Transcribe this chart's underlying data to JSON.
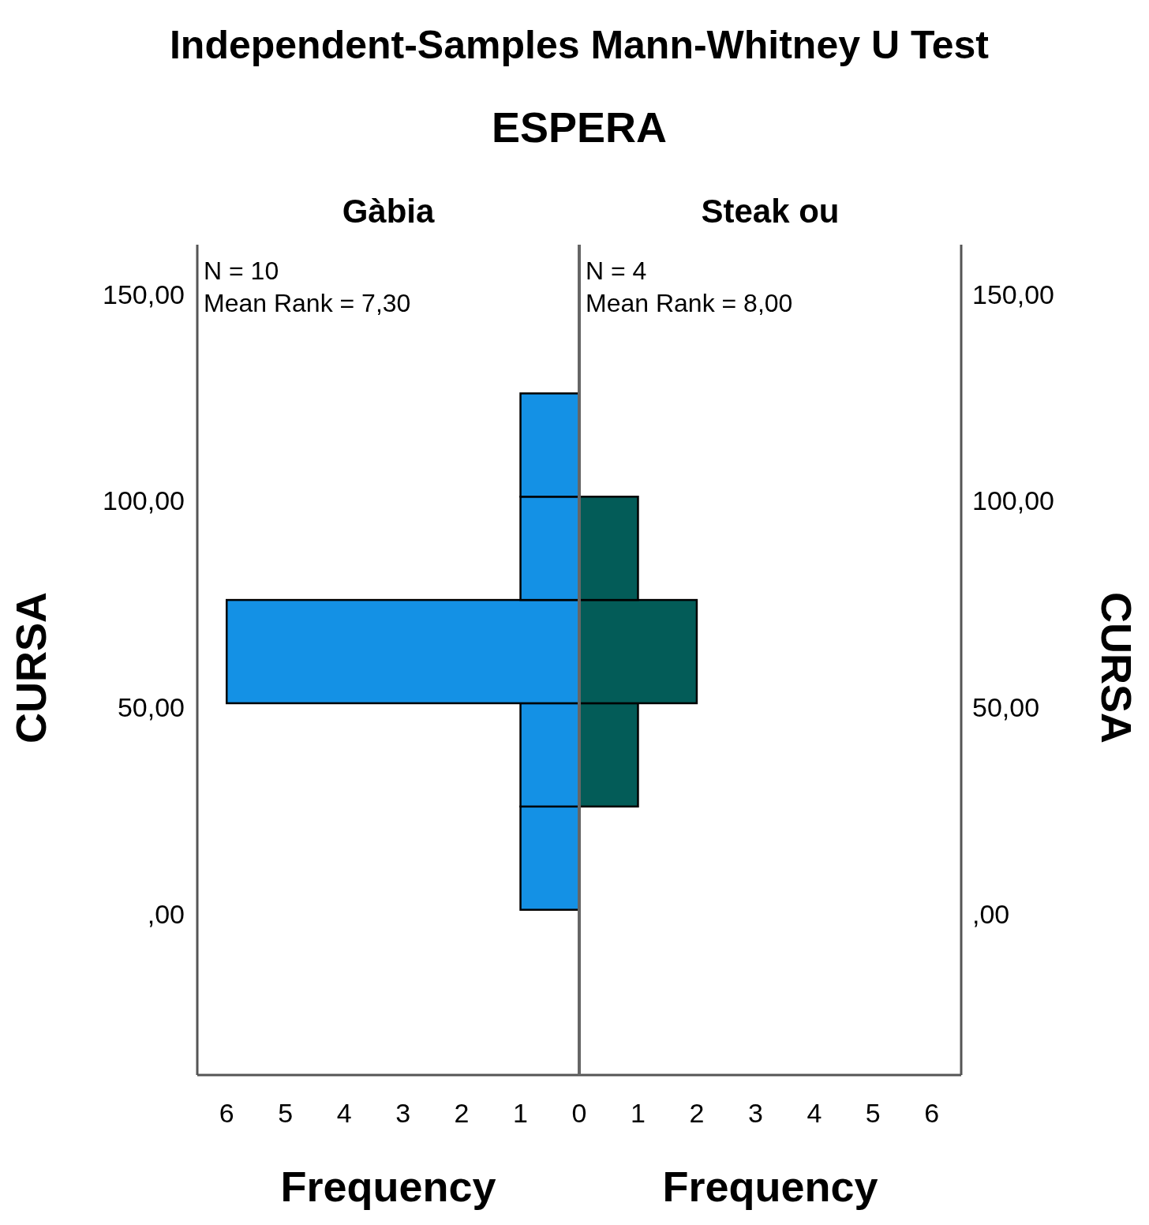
{
  "chart_data": [
    {
      "type": "histogram",
      "orientation": "horizontal",
      "title": "Gàbia",
      "ylabel": "CURSA",
      "xlabel": "Frequency",
      "annotations": [
        "Independent-Samples Mann-Whitney U Test",
        "ESPERA",
        "N = 10",
        "Mean Rank = 7,30"
      ],
      "bins": [
        1,
        26,
        51,
        76,
        101,
        126
      ],
      "values": [
        1,
        1,
        6,
        1,
        1
      ],
      "color": "#1491e5",
      "xlim": [
        6.5,
        0
      ],
      "xticks": [
        6,
        5,
        4,
        3,
        2,
        1,
        0
      ],
      "ylim": [
        -39,
        162
      ],
      "yticks": [
        {
          "value": 0,
          "label": ",00"
        },
        {
          "value": 50,
          "label": "50,00"
        },
        {
          "value": 100,
          "label": "100,00"
        },
        {
          "value": 150,
          "label": "150,00"
        }
      ],
      "grid": false
    },
    {
      "type": "histogram",
      "orientation": "horizontal",
      "title": "Steak ou",
      "ylabel": "CURSA",
      "xlabel": "Frequency",
      "annotations": [
        "N = 4",
        "Mean Rank = 8,00"
      ],
      "bins": [
        26,
        51,
        76,
        101
      ],
      "values": [
        1,
        2,
        1
      ],
      "color": "#035c58",
      "xlim": [
        0,
        6.5
      ],
      "xticks": [
        1,
        2,
        3,
        4,
        5,
        6
      ],
      "ylim": [
        -39,
        162
      ],
      "yticks": [
        {
          "value": 0,
          "label": ",00"
        },
        {
          "value": 50,
          "label": "50,00"
        },
        {
          "value": 100,
          "label": "100,00"
        },
        {
          "value": 150,
          "label": "150,00"
        }
      ],
      "grid": false
    }
  ]
}
